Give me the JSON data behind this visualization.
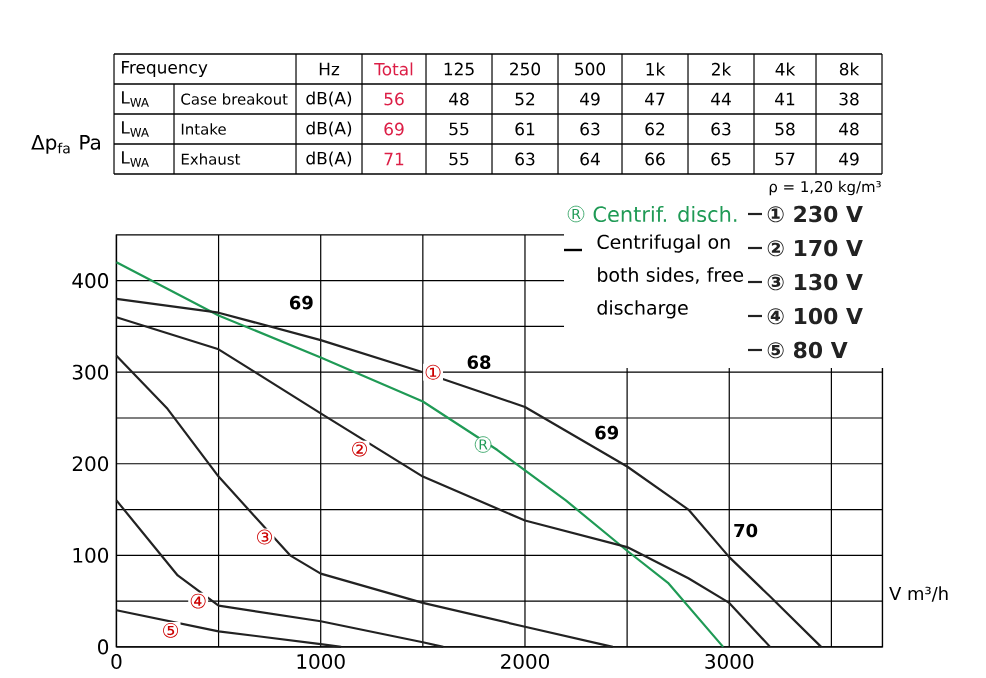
{
  "chart_data": {
    "type": "line",
    "xlabel": "V m³/h",
    "ylabel": "Δp$_{fa}$ Pa",
    "xlim": [
      0,
      3750
    ],
    "ylim": [
      0,
      450
    ],
    "xticks": [
      0,
      {
        "value": 500,
        "label": null
      },
      1000,
      {
        "value": 1500,
        "label": null
      },
      2000,
      {
        "value": 2500,
        "label": null
      },
      3000,
      {
        "value": 3500,
        "label": null
      }
    ],
    "yticks": [
      0,
      {
        "value": 50,
        "label": null
      },
      100,
      {
        "value": 150,
        "label": null
      },
      200,
      {
        "value": 250,
        "label": null
      },
      300,
      {
        "value": 350,
        "label": null
      },
      400
    ],
    "grid": true,
    "legend": "top right",
    "marker": "none",
    "line_style": "solid",
    "series": [
      {
        "name": "Centrif. disch.",
        "color": "#1f9a55",
        "x": [
          0,
          500,
          1000,
          1500,
          1865,
          2200,
          2500,
          2700,
          2970
        ],
        "values": [
          420,
          362,
          316,
          268,
          215,
          160,
          105,
          70,
          0
        ]
      },
      {
        "name": "① 230 V",
        "color": "#222222",
        "x": [
          0,
          500,
          1000,
          1500,
          2000,
          2500,
          2800,
          3000,
          3200,
          3450
        ],
        "values": [
          380,
          365,
          335,
          300,
          262,
          197,
          150,
          98,
          55,
          0
        ]
      },
      {
        "name": "② 170 V",
        "color": "#222222",
        "x": [
          0,
          500,
          1000,
          1500,
          2000,
          2500,
          2800,
          3000,
          3200
        ],
        "values": [
          360,
          325,
          255,
          186,
          138,
          109,
          75,
          48,
          0
        ]
      },
      {
        "name": "③ 130 V",
        "color": "#222222",
        "x": [
          0,
          250,
          500,
          850,
          1000,
          1500,
          2000,
          2430
        ],
        "values": [
          318,
          260,
          186,
          100,
          80,
          48,
          22,
          0
        ]
      },
      {
        "name": "④ 100 V",
        "color": "#222222",
        "x": [
          0,
          300,
          500,
          1000,
          1500,
          1600
        ],
        "values": [
          160,
          78,
          45,
          28,
          5,
          0
        ]
      },
      {
        "name": "⑤ 80 V",
        "color": "#222222",
        "x": [
          0,
          500,
          1000,
          1100
        ],
        "values": [
          40,
          17,
          3,
          0
        ]
      }
    ],
    "annotations": [
      {
        "text": "69",
        "x": 905,
        "y": 376
      },
      {
        "text": "68",
        "x": 1775,
        "y": 311
      },
      {
        "text": "69",
        "x": 2400,
        "y": 234
      },
      {
        "text": "70",
        "x": 3080,
        "y": 127
      },
      {
        "text": "①",
        "x": 1550,
        "y": 300
      },
      {
        "text": "②",
        "x": 1190,
        "y": 216
      },
      {
        "text": "③",
        "x": 725,
        "y": 120
      },
      {
        "text": "④",
        "x": 400,
        "y": 50
      },
      {
        "text": "⑤",
        "x": 265,
        "y": 18
      },
      {
        "text": "R",
        "x": 1795,
        "y": 221
      },
      "ρ = 1,20 kg/m³",
      "Centrifugal on both sides, free discharge",
      "R",
      "Frequency",
      "Hz",
      "Total",
      "125",
      "250",
      "500",
      "1k",
      "2k",
      "4k",
      "8k",
      "L$_{WA}$",
      "Case breakout",
      "dB(A)",
      "56",
      "48",
      "52",
      "49",
      "47",
      "44",
      "41",
      "38",
      "L$_{WA}$",
      "Intake",
      "dB(A)",
      "69",
      "55",
      "61",
      "63",
      "62",
      "63",
      "58",
      "48",
      "L$_{WA}$",
      "Exhaust",
      "dB(A)",
      "71",
      "55",
      "63",
      "64",
      "66",
      "65",
      "57",
      "49"
    ]
  }
}
